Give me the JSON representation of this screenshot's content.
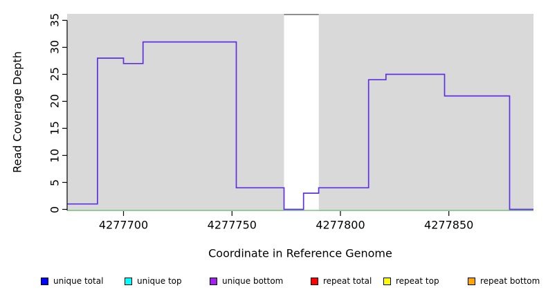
{
  "chart_data": {
    "type": "line",
    "line_style": "step",
    "title": "",
    "xlabel": "Coordinate in Reference Genome",
    "ylabel": "Read Coverage Depth",
    "x_ticks": [
      4277700,
      4277750,
      4277800,
      4277850
    ],
    "y_ticks": [
      0,
      5,
      10,
      15,
      20,
      25,
      30,
      35
    ],
    "xlim": [
      4277674,
      4277889
    ],
    "ylim": [
      0,
      36.2
    ],
    "grid": false,
    "legend_position": "bottom",
    "plot_background": "#d9d9d9",
    "line_color": "#5b31e1",
    "axis_color": "#000000",
    "coverage_steps": [
      {
        "from": 4277674,
        "to": 4277688,
        "depth": 1
      },
      {
        "from": 4277688,
        "to": 4277700,
        "depth": 28
      },
      {
        "from": 4277700,
        "to": 4277709,
        "depth": 27
      },
      {
        "from": 4277709,
        "to": 4277752,
        "depth": 31
      },
      {
        "from": 4277752,
        "to": 4277774,
        "depth": 4
      },
      {
        "from": 4277774,
        "to": 4277783,
        "depth": 0
      },
      {
        "from": 4277783,
        "to": 4277790,
        "depth": 3
      },
      {
        "from": 4277790,
        "to": 4277813,
        "depth": 4
      },
      {
        "from": 4277813,
        "to": 4277821,
        "depth": 24
      },
      {
        "from": 4277821,
        "to": 4277848,
        "depth": 25
      },
      {
        "from": 4277848,
        "to": 4277878,
        "depth": 21
      },
      {
        "from": 4277878,
        "to": 4277889,
        "depth": 0
      }
    ],
    "baseline": {
      "depth": 0,
      "color": "#7cc57c"
    },
    "masked_region": {
      "from": 4277774,
      "to": 4277790,
      "fill": "#ffffff",
      "clipped_top_value": 36,
      "clipped_top_color": "#8f8f8f"
    },
    "legend": [
      {
        "label": "unique total",
        "color": "#0000ff"
      },
      {
        "label": "unique top",
        "color": "#00ffff"
      },
      {
        "label": "unique bottom",
        "color": "#a020f0"
      },
      {
        "label": "repeat total",
        "color": "#ff0000"
      },
      {
        "label": "repeat top",
        "color": "#ffff00"
      },
      {
        "label": "repeat bottom",
        "color": "#ffa500"
      }
    ]
  }
}
